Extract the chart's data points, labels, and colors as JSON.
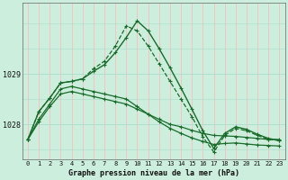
{
  "title": "Graphe pression niveau de la mer (hPa)",
  "background_color": "#cceedd",
  "grid_color_v": "#ffbbbb",
  "grid_color_h": "#aaddcc",
  "line_color": "#1a6b2a",
  "x_ticks": [
    0,
    1,
    2,
    3,
    4,
    5,
    6,
    7,
    8,
    9,
    10,
    11,
    12,
    13,
    14,
    15,
    16,
    17,
    18,
    19,
    20,
    21,
    22,
    23
  ],
  "ylim": [
    1027.3,
    1030.4
  ],
  "yticks": [
    1028,
    1029
  ],
  "figsize": [
    3.2,
    2.0
  ],
  "series": [
    {
      "style": "-",
      "lw": 0.9,
      "data": [
        1027.7,
        1028.05,
        1028.35,
        1028.6,
        1028.65,
        1028.6,
        1028.55,
        1028.5,
        1028.45,
        1028.4,
        1028.3,
        1028.2,
        1028.1,
        1028.0,
        1027.95,
        1027.88,
        1027.82,
        1027.78,
        1027.77,
        1027.76,
        1027.74,
        1027.72,
        1027.7,
        1027.7
      ]
    },
    {
      "style": "-",
      "lw": 0.9,
      "data": [
        1027.7,
        1028.1,
        1028.4,
        1028.7,
        1028.75,
        1028.7,
        1028.65,
        1028.6,
        1028.55,
        1028.5,
        1028.35,
        1028.2,
        1028.05,
        1027.92,
        1027.82,
        1027.73,
        1027.66,
        1027.6,
        1027.62,
        1027.63,
        1027.61,
        1027.59,
        1027.58,
        1027.57
      ]
    },
    {
      "style": "--",
      "lw": 0.9,
      "data": [
        1027.7,
        1028.25,
        1028.52,
        1028.82,
        1028.85,
        1028.9,
        1029.1,
        1029.25,
        1029.55,
        1029.95,
        1029.85,
        1029.55,
        1029.2,
        1028.85,
        1028.5,
        1028.15,
        1027.75,
        1027.45,
        1027.78,
        1027.92,
        1027.87,
        1027.78,
        1027.7,
        1027.68
      ]
    },
    {
      "style": "-",
      "lw": 1.0,
      "data": [
        1027.7,
        1028.25,
        1028.52,
        1028.82,
        1028.85,
        1028.9,
        1029.05,
        1029.18,
        1029.42,
        1029.72,
        1030.05,
        1029.85,
        1029.5,
        1029.12,
        1028.72,
        1028.3,
        1027.87,
        1027.52,
        1027.82,
        1027.95,
        1027.9,
        1027.8,
        1027.72,
        1027.68
      ]
    }
  ]
}
